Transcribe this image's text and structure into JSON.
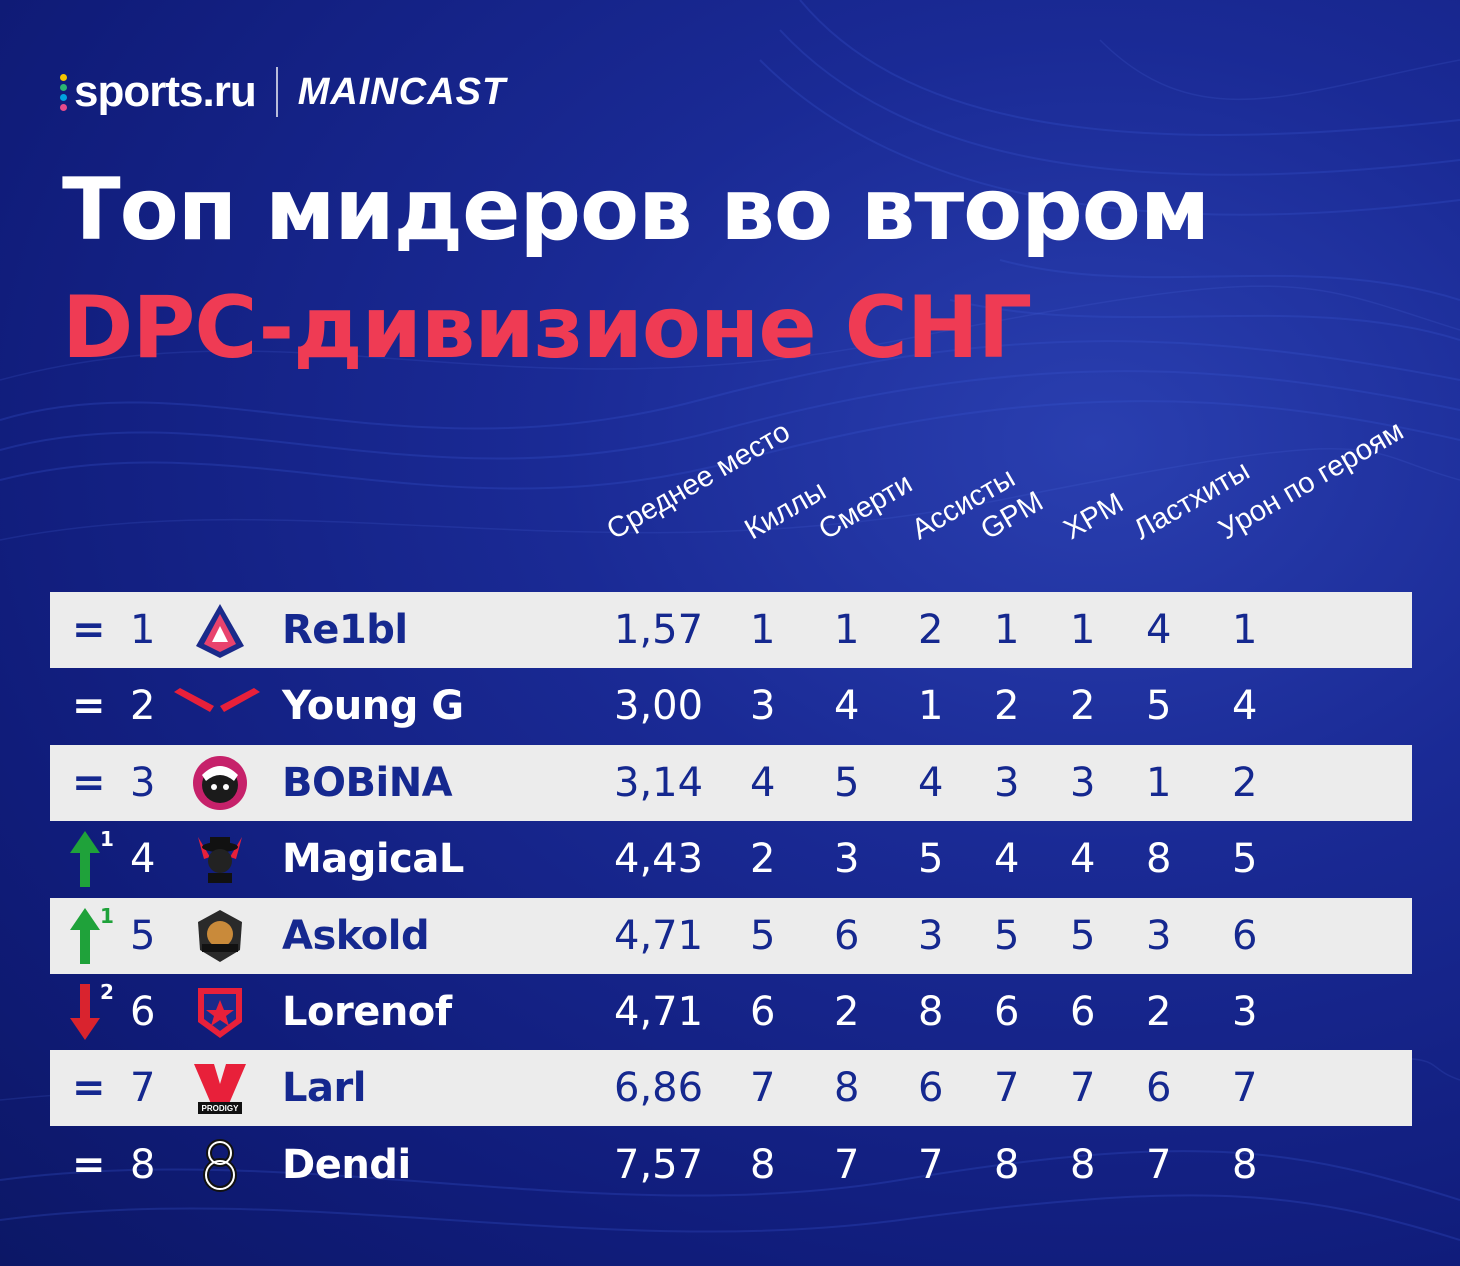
{
  "header": {
    "sports_logo": "sports.ru",
    "maincast_logo": "MAINCAST"
  },
  "title": {
    "line1": "Топ мидеров во втором",
    "line2": "DPC-дивизионе СНГ"
  },
  "colors": {
    "accent_red": "#ef3b54",
    "row_light": "#ececec",
    "text_dark_blue": "#15288f",
    "arrow_up": "#1fa23a",
    "arrow_down": "#d9232e"
  },
  "columns": [
    "Среднее место",
    "Киллы",
    "Смерти",
    "Ассисты",
    "GPM",
    "XPM",
    "Ластхиты",
    "Урон по героям"
  ],
  "rows": [
    {
      "trend": "=",
      "delta": "",
      "rank": "1",
      "team_icon": "virtus-pro-logo",
      "player": "Re1bl",
      "avg": "1,57",
      "stats": [
        "1",
        "1",
        "2",
        "1",
        "1",
        "4",
        "1"
      ]
    },
    {
      "trend": "=",
      "delta": "",
      "rank": "2",
      "team_icon": "navi-logo",
      "player": "Young G",
      "avg": "3,00",
      "stats": [
        "3",
        "4",
        "1",
        "2",
        "2",
        "5",
        "4"
      ]
    },
    {
      "trend": "=",
      "delta": "",
      "rank": "3",
      "team_icon": "team-spirit-logo",
      "player": "BOBiNA",
      "avg": "3,14",
      "stats": [
        "4",
        "5",
        "4",
        "3",
        "3",
        "1",
        "2"
      ]
    },
    {
      "trend": "up",
      "delta": "1",
      "rank": "4",
      "team_icon": "team-mafia-logo",
      "player": "MagicaL",
      "avg": "4,43",
      "stats": [
        "2",
        "3",
        "5",
        "4",
        "4",
        "8",
        "5"
      ]
    },
    {
      "trend": "up",
      "delta": "1",
      "rank": "5",
      "team_icon": "team-lion-logo",
      "player": "Askold",
      "avg": "4,71",
      "stats": [
        "5",
        "6",
        "3",
        "5",
        "5",
        "3",
        "6"
      ]
    },
    {
      "trend": "down",
      "delta": "2",
      "rank": "6",
      "team_icon": "gambit-logo",
      "player": "Lorenof",
      "avg": "4,71",
      "stats": [
        "6",
        "2",
        "8",
        "6",
        "6",
        "2",
        "3"
      ]
    },
    {
      "trend": "=",
      "delta": "",
      "rank": "7",
      "team_icon": "vp-prodigy-logo",
      "player": "Larl",
      "avg": "6,86",
      "stats": [
        "7",
        "8",
        "6",
        "7",
        "7",
        "6",
        "7"
      ]
    },
    {
      "trend": "=",
      "delta": "",
      "rank": "8",
      "team_icon": "b8-logo",
      "player": "Dendi",
      "avg": "7,57",
      "stats": [
        "8",
        "7",
        "7",
        "8",
        "8",
        "7",
        "8"
      ]
    }
  ],
  "logo_texts": {
    "prodigy": "PRODIGY"
  }
}
